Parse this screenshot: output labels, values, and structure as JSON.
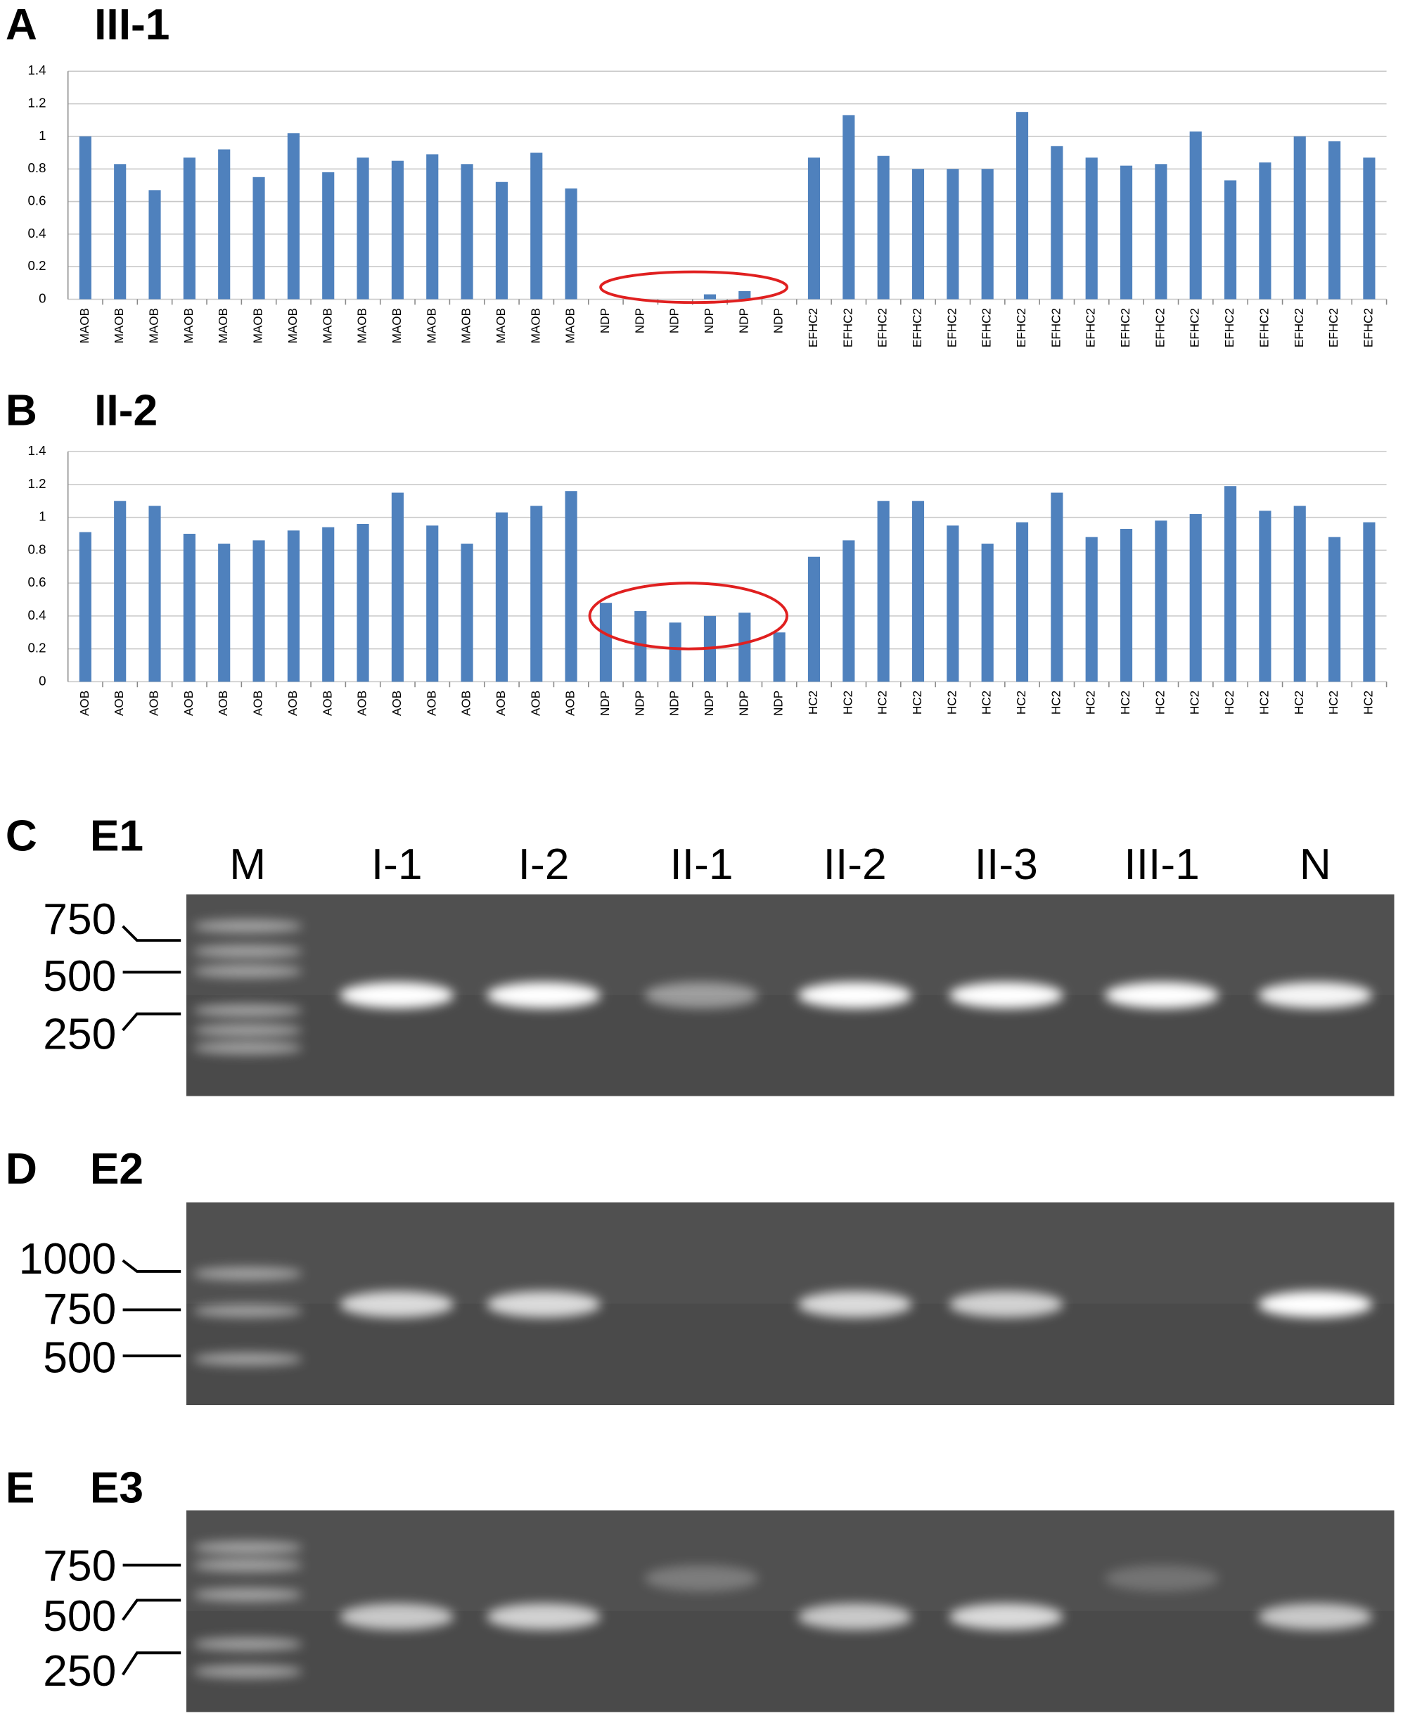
{
  "chart_data": [
    {
      "type": "bar",
      "panel": "A",
      "title": "III-1",
      "categories": [
        "MAOB",
        "MAOB",
        "MAOB",
        "MAOB",
        "MAOB",
        "MAOB",
        "MAOB",
        "MAOB",
        "MAOB",
        "MAOB",
        "MAOB",
        "MAOB",
        "MAOB",
        "MAOB",
        "MAOB",
        "NDP",
        "NDP",
        "NDP",
        "NDP",
        "NDP",
        "NDP",
        "EFHC2",
        "EFHC2",
        "EFHC2",
        "EFHC2",
        "EFHC2",
        "EFHC2",
        "EFHC2",
        "EFHC2",
        "EFHC2",
        "EFHC2",
        "EFHC2",
        "EFHC2",
        "EFHC2",
        "EFHC2",
        "EFHC2",
        "EFHC2",
        "EFHC2"
      ],
      "values": [
        1.0,
        0.83,
        0.67,
        0.87,
        0.92,
        0.75,
        1.02,
        0.78,
        0.87,
        0.85,
        0.89,
        0.83,
        0.72,
        0.9,
        0.68,
        0,
        0,
        0,
        0.03,
        0.05,
        0,
        0.87,
        1.13,
        0.88,
        0.8,
        0.8,
        0.8,
        1.15,
        0.94,
        0.87,
        0.82,
        0.83,
        1.03,
        0.73,
        0.84,
        1.0,
        0.97,
        0.87
      ],
      "color": "#4f81bd",
      "ylim": [
        0,
        1.4
      ],
      "yticks": [
        0,
        0.2,
        0.4,
        0.6,
        0.8,
        1,
        1.2,
        1.4
      ],
      "grid": true
    },
    {
      "type": "bar",
      "panel": "B",
      "title": "II-2",
      "categories": [
        "AOB",
        "AOB",
        "AOB",
        "AOB",
        "AOB",
        "AOB",
        "AOB",
        "AOB",
        "AOB",
        "AOB",
        "AOB",
        "AOB",
        "AOB",
        "AOB",
        "AOB",
        "NDP",
        "NDP",
        "NDP",
        "NDP",
        "NDP",
        "NDP",
        "HC2",
        "HC2",
        "HC2",
        "HC2",
        "HC2",
        "HC2",
        "HC2",
        "HC2",
        "HC2",
        "HC2",
        "HC2",
        "HC2",
        "HC2",
        "HC2",
        "HC2",
        "HC2",
        "HC2"
      ],
      "values": [
        0.91,
        1.1,
        1.07,
        0.9,
        0.84,
        0.86,
        0.92,
        0.94,
        0.96,
        1.15,
        0.95,
        0.84,
        1.03,
        1.07,
        1.16,
        0.48,
        0.43,
        0.36,
        0.4,
        0.42,
        0.3,
        0.76,
        0.86,
        1.1,
        1.1,
        0.95,
        0.84,
        0.97,
        1.15,
        0.88,
        0.93,
        0.98,
        1.02,
        1.19,
        1.04,
        1.07,
        0.88,
        0.97
      ],
      "color": "#4f81bd",
      "ylim": [
        0,
        1.4
      ],
      "yticks": [
        0,
        0.2,
        0.4,
        0.6,
        0.8,
        1,
        1.2,
        1.4
      ],
      "grid": true
    }
  ],
  "gels": [
    {
      "panel": "C",
      "title": "E1",
      "lanes": [
        "M",
        "I-1",
        "I-2",
        "II-1",
        "II-2",
        "II-3",
        "III-1",
        "N"
      ],
      "markers": [
        750,
        500,
        250
      ]
    },
    {
      "panel": "D",
      "title": "E2",
      "markers": [
        1000,
        750,
        500
      ]
    },
    {
      "panel": "E",
      "title": "E3",
      "markers": [
        750,
        500,
        250
      ]
    }
  ]
}
